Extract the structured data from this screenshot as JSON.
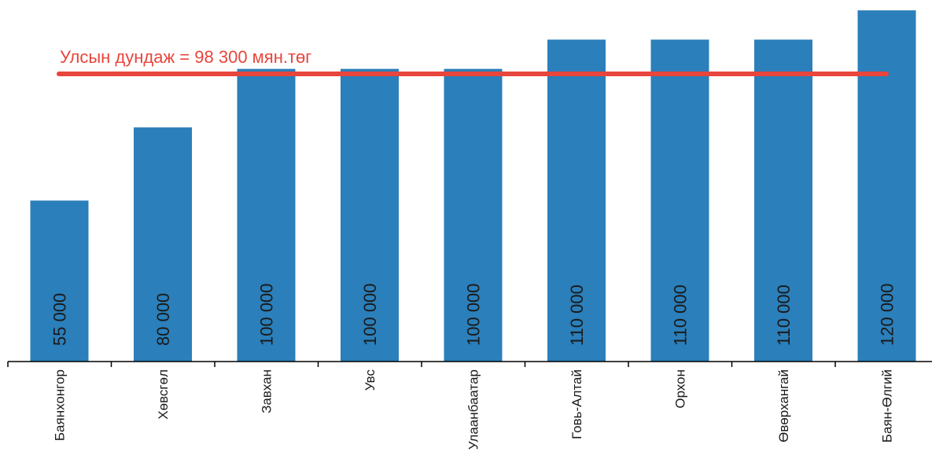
{
  "chart_data": {
    "type": "bar",
    "categories": [
      "Баянхонгор",
      "Хөвсгөл",
      "Завхан",
      "Увс",
      "Улаанбаатар",
      "Говь-Алтай",
      "Орхон",
      "Өвөрхангай",
      "Баян-Өлгий"
    ],
    "values": [
      55000,
      80000,
      100000,
      100000,
      100000,
      110000,
      110000,
      110000,
      120000
    ],
    "data_labels": [
      "55 000",
      "80 000",
      "100 000",
      "100 000",
      "100 000",
      "110 000",
      "110 000",
      "110 000",
      "120 000"
    ],
    "ylim": [
      0,
      123000
    ],
    "grid": false,
    "colors": {
      "bar": "#2b7fba",
      "reference_line": "#e8453c",
      "axis": "#000000"
    },
    "reference_line": {
      "value": 98300,
      "label": "Улсын дундаж = 98 300 мян.төг"
    }
  }
}
